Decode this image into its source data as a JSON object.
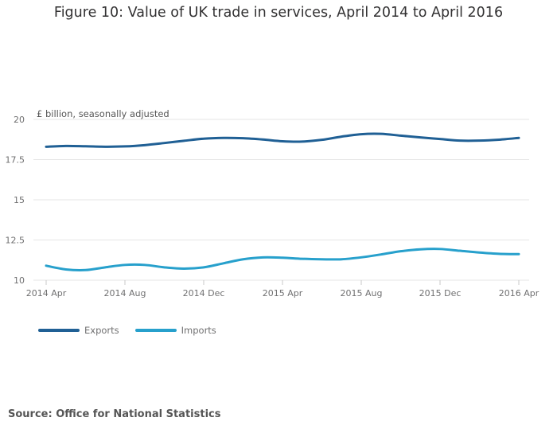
{
  "title": "Figure 10: Value of UK trade in services, April 2014 to April 2016",
  "source": "Source: Office for National Statistics",
  "colors": {
    "exports": "#206095",
    "imports": "#27A0CC",
    "grid": "#e6e6e6",
    "axis_text": "#707071"
  },
  "chart_data": {
    "type": "line",
    "title": "Figure 10: Value of UK trade in services, April 2014 to April 2016",
    "ylabel": "£ billion, seasonally adjusted",
    "xlabel": "",
    "ylim": [
      10,
      20
    ],
    "yticks": [
      10,
      12.5,
      15,
      17.5,
      20
    ],
    "ytick_labels": [
      "10",
      "12.5",
      "15",
      "17.5",
      "20"
    ],
    "x_tick_labels": [
      "2014 Apr",
      "2014 Aug",
      "2014 Dec",
      "2015 Apr",
      "2015 Aug",
      "2015 Dec",
      "2016 Apr"
    ],
    "x_tick_index": [
      0,
      4,
      8,
      12,
      16,
      20,
      24
    ],
    "categories": [
      "2014 Apr",
      "2014 May",
      "2014 Jun",
      "2014 Jul",
      "2014 Aug",
      "2014 Sep",
      "2014 Oct",
      "2014 Nov",
      "2014 Dec",
      "2015 Jan",
      "2015 Feb",
      "2015 Mar",
      "2015 Apr",
      "2015 May",
      "2015 Jun",
      "2015 Jul",
      "2015 Aug",
      "2015 Sep",
      "2015 Oct",
      "2015 Nov",
      "2015 Dec",
      "2016 Jan",
      "2016 Feb",
      "2016 Mar",
      "2016 Apr"
    ],
    "grid": true,
    "legend": "bottom-left",
    "series": [
      {
        "name": "Exports",
        "color": "#206095",
        "values": [
          18.3,
          18.35,
          18.33,
          18.3,
          18.32,
          18.4,
          18.53,
          18.67,
          18.8,
          18.85,
          18.83,
          18.75,
          18.64,
          18.62,
          18.73,
          18.93,
          19.08,
          19.1,
          18.99,
          18.88,
          18.78,
          18.68,
          18.68,
          18.74,
          18.85
        ]
      },
      {
        "name": "Imports",
        "color": "#27A0CC",
        "values": [
          10.9,
          10.67,
          10.63,
          10.8,
          10.95,
          10.95,
          10.8,
          10.72,
          10.8,
          11.05,
          11.3,
          11.42,
          11.4,
          11.33,
          11.3,
          11.3,
          11.42,
          11.6,
          11.8,
          11.92,
          11.94,
          11.83,
          11.72,
          11.64,
          11.62
        ]
      }
    ]
  }
}
